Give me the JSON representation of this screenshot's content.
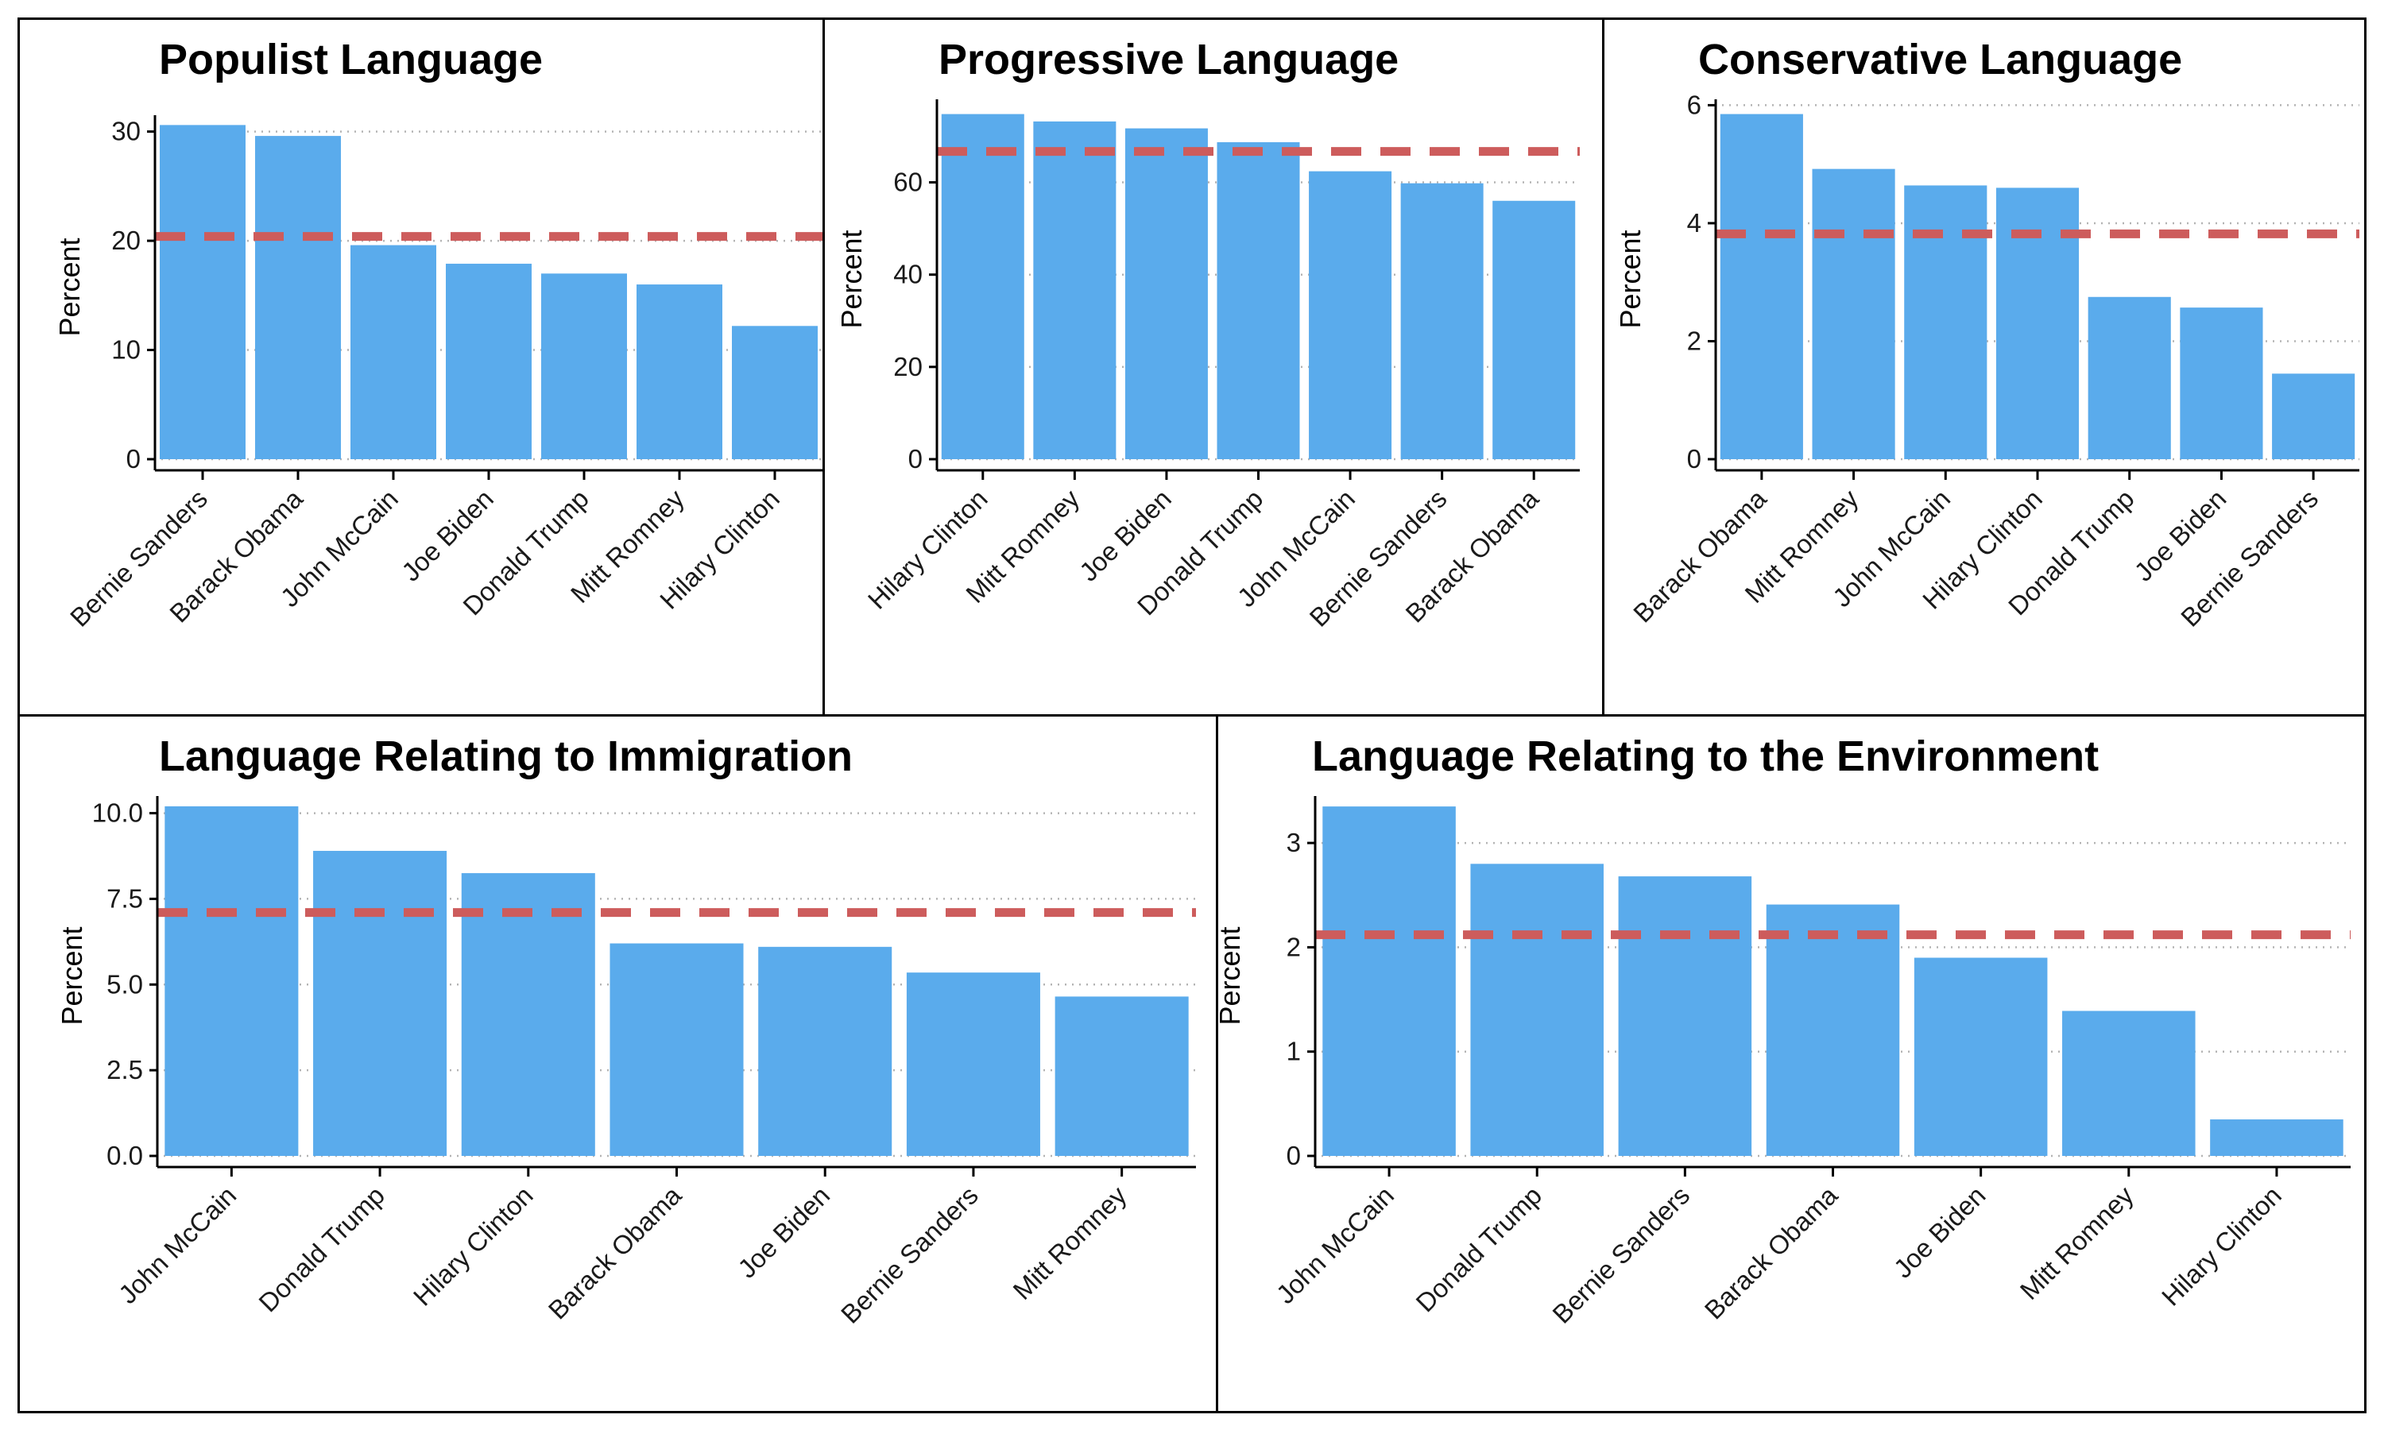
{
  "colors": {
    "bar": "#5aabec",
    "reference_line": "#cd5c5c",
    "grid": "#b3b3b3",
    "axis": "#000000"
  },
  "chart_data": [
    {
      "type": "bar",
      "title": "Populist Language",
      "ylabel": "Percent",
      "categories": [
        "Bernie Sanders",
        "Barack Obama",
        "John McCain",
        "Joe Biden",
        "Donald Trump",
        "Mitt Romney",
        "Hilary Clinton"
      ],
      "values": [
        30.6,
        29.6,
        19.6,
        17.9,
        17.0,
        16.0,
        12.2
      ],
      "reference_line": 20.4,
      "ylim": [
        0,
        31.5
      ],
      "yticks": [
        0,
        10,
        20,
        30
      ],
      "yticklabels": [
        "0",
        "10",
        "20",
        "30"
      ],
      "grid": "horizontal-dotted"
    },
    {
      "type": "bar",
      "title": "Progressive Language",
      "ylabel": "Percent",
      "categories": [
        "Hilary Clinton",
        "Mitt Romney",
        "Joe Biden",
        "Donald Trump",
        "John McCain",
        "Bernie Sanders",
        "Barack Obama"
      ],
      "values": [
        74.8,
        73.2,
        71.7,
        68.7,
        62.4,
        59.8,
        56.0
      ],
      "reference_line": 66.7,
      "ylim": [
        0,
        78
      ],
      "yticks": [
        0,
        20,
        40,
        60
      ],
      "yticklabels": [
        "0",
        "20",
        "40",
        "60"
      ],
      "grid": "horizontal-dotted"
    },
    {
      "type": "bar",
      "title": "Conservative Language",
      "ylabel": "Percent",
      "categories": [
        "Barack Obama",
        "Mitt Romney",
        "John McCain",
        "Hilary Clinton",
        "Donald Trump",
        "Joe Biden",
        "Bernie Sanders"
      ],
      "values": [
        5.85,
        4.92,
        4.64,
        4.6,
        2.75,
        2.57,
        1.45
      ],
      "reference_line": 3.82,
      "ylim": [
        0,
        6.1
      ],
      "yticks": [
        0,
        2,
        4,
        6
      ],
      "yticklabels": [
        "0",
        "2",
        "4",
        "6"
      ],
      "grid": "horizontal-dotted"
    },
    {
      "type": "bar",
      "title": "Language Relating to Immigration",
      "ylabel": "Percent",
      "categories": [
        "John McCain",
        "Donald Trump",
        "Hilary Clinton",
        "Barack Obama",
        "Joe Biden",
        "Bernie Sanders",
        "Mitt Romney"
      ],
      "values": [
        10.2,
        8.9,
        8.25,
        6.2,
        6.1,
        5.35,
        4.65
      ],
      "reference_line": 7.1,
      "ylim": [
        0,
        10.5
      ],
      "yticks": [
        0,
        2.5,
        5,
        7.5,
        10
      ],
      "yticklabels": [
        "0.0",
        "2.5",
        "5.0",
        "7.5",
        "10.0"
      ],
      "grid": "horizontal-dotted"
    },
    {
      "type": "bar",
      "title": "Language Relating to the Environment",
      "ylabel": "Percent",
      "categories": [
        "John McCain",
        "Donald Trump",
        "Bernie Sanders",
        "Barack Obama",
        "Joe Biden",
        "Mitt Romney",
        "Hilary Clinton"
      ],
      "values": [
        3.35,
        2.8,
        2.68,
        2.41,
        1.9,
        1.39,
        0.35
      ],
      "reference_line": 2.12,
      "ylim": [
        0,
        3.45
      ],
      "yticks": [
        0,
        1,
        2,
        3
      ],
      "yticklabels": [
        "0",
        "1",
        "2",
        "3"
      ],
      "grid": "horizontal-dotted"
    }
  ]
}
